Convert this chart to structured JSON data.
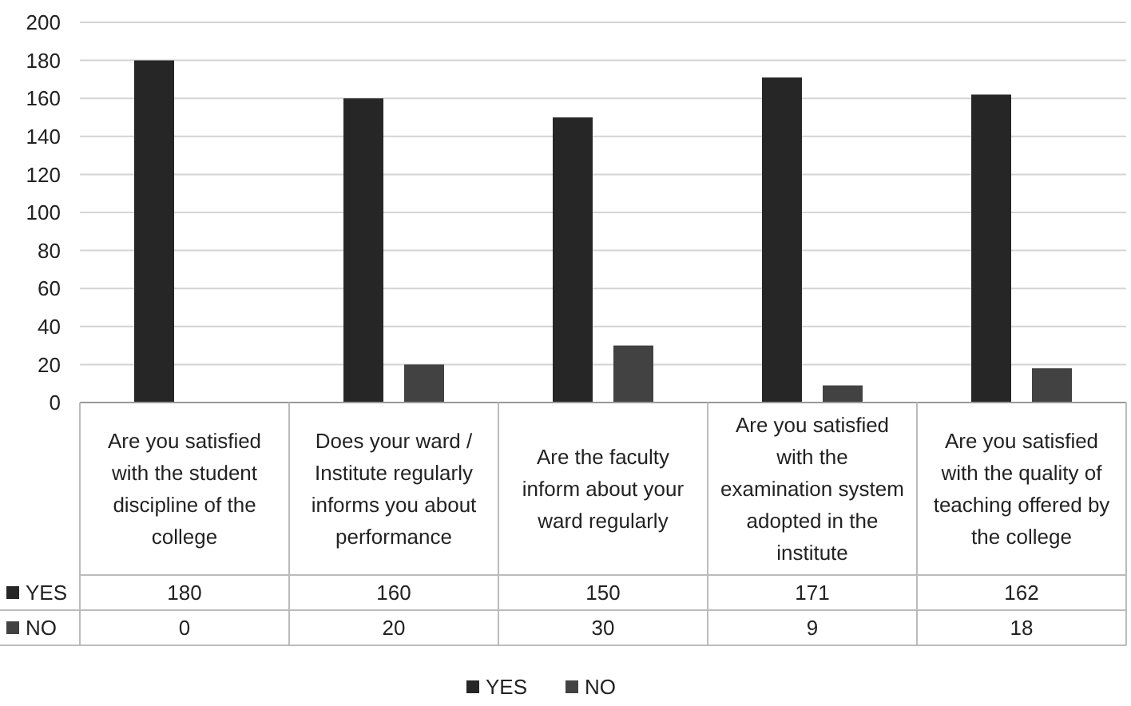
{
  "chart_data": {
    "type": "bar",
    "categories": [
      "Are you satisfied with the student discipline of the college",
      "Does your ward / Institute regularly informs you about performance",
      "Are the faculty inform about your ward regularly",
      "Are you satisfied with the examination system adopted in the institute",
      "Are you satisfied with the quality of teaching offered by the college"
    ],
    "series": [
      {
        "name": "YES",
        "color": "#262626",
        "values": [
          180,
          160,
          150,
          171,
          162
        ]
      },
      {
        "name": "NO",
        "color": "#424242",
        "values": [
          0,
          20,
          30,
          9,
          18
        ]
      }
    ],
    "ylim": [
      0,
      200
    ],
    "yticks": [
      0,
      20,
      40,
      60,
      80,
      100,
      120,
      140,
      160,
      180,
      200
    ],
    "grid": "y",
    "legend": "bottom",
    "data_labels": true
  }
}
